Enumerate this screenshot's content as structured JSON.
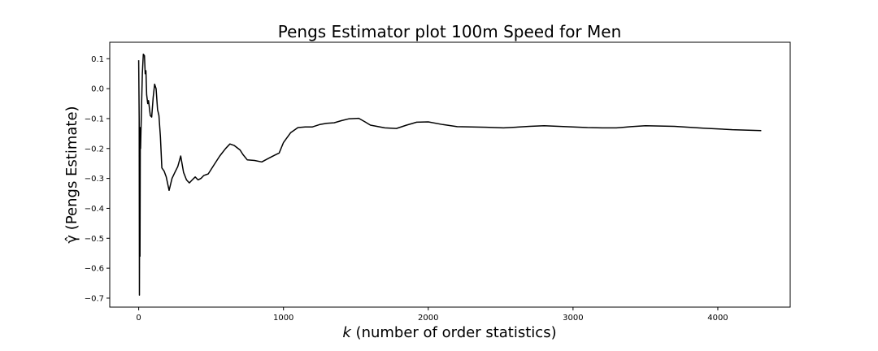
{
  "chart_data": {
    "type": "line",
    "title": "Pengs Estimator plot 100m Speed for Men",
    "xlabel_var": "k",
    "xlabel_rest": " (number of order statistics)",
    "ylabel": "γ̂ (Pengs Estimate)",
    "xlim": [
      -200,
      4500
    ],
    "ylim": [
      -0.73,
      0.155
    ],
    "xticks": [
      0,
      1000,
      2000,
      3000,
      4000
    ],
    "xtick_labels": [
      "0",
      "1000",
      "2000",
      "3000",
      "4000"
    ],
    "yticks": [
      0.1,
      0.0,
      -0.1,
      -0.2,
      -0.3,
      -0.4,
      -0.5,
      -0.6,
      -0.7
    ],
    "ytick_labels": [
      "0.1",
      "0.0",
      "−0.1",
      "−0.2",
      "−0.3",
      "−0.4",
      "−0.5",
      "−0.6",
      "−0.7"
    ],
    "grid": false,
    "line_color": "#000000",
    "series": [
      {
        "x": [
          0,
          3,
          5,
          7,
          9,
          11,
          13,
          16,
          20,
          25,
          32,
          40,
          45,
          50,
          55,
          62,
          68,
          75,
          80,
          90,
          100,
          110,
          120,
          130,
          140,
          150,
          160,
          175,
          190,
          210,
          230,
          250,
          270,
          290,
          310,
          330,
          350,
          370,
          390,
          410,
          430,
          450,
          480,
          520,
          560,
          600,
          630,
          660,
          700,
          720,
          750,
          800,
          850,
          900,
          940,
          970,
          1000,
          1050,
          1100,
          1150,
          1200,
          1250,
          1300,
          1350,
          1400,
          1450,
          1520,
          1560,
          1600,
          1700,
          1780,
          1850,
          1920,
          2000,
          2100,
          2200,
          2300,
          2400,
          2520,
          2600,
          2700,
          2800,
          2900,
          3000,
          3100,
          3200,
          3300,
          3400,
          3500,
          3700,
          3900,
          4100,
          4300
        ],
        "y": [
          0.095,
          -0.1,
          -0.69,
          -0.13,
          -0.56,
          -0.13,
          -0.2,
          -0.13,
          -0.05,
          0.05,
          0.115,
          0.11,
          0.05,
          0.06,
          -0.02,
          -0.05,
          -0.04,
          -0.07,
          -0.09,
          -0.095,
          -0.03,
          0.015,
          0.0,
          -0.07,
          -0.09,
          -0.16,
          -0.265,
          -0.275,
          -0.295,
          -0.34,
          -0.3,
          -0.28,
          -0.26,
          -0.225,
          -0.28,
          -0.305,
          -0.315,
          -0.305,
          -0.295,
          -0.305,
          -0.3,
          -0.29,
          -0.285,
          -0.255,
          -0.225,
          -0.2,
          -0.185,
          -0.19,
          -0.205,
          -0.22,
          -0.238,
          -0.24,
          -0.245,
          -0.232,
          -0.222,
          -0.215,
          -0.18,
          -0.147,
          -0.13,
          -0.128,
          -0.128,
          -0.12,
          -0.116,
          -0.114,
          -0.107,
          -0.101,
          -0.099,
          -0.11,
          -0.122,
          -0.131,
          -0.133,
          -0.122,
          -0.112,
          -0.111,
          -0.12,
          -0.127,
          -0.128,
          -0.129,
          -0.131,
          -0.129,
          -0.126,
          -0.124,
          -0.126,
          -0.128,
          -0.13,
          -0.131,
          -0.131,
          -0.127,
          -0.124,
          -0.126,
          -0.132,
          -0.137,
          -0.14
        ]
      }
    ]
  }
}
